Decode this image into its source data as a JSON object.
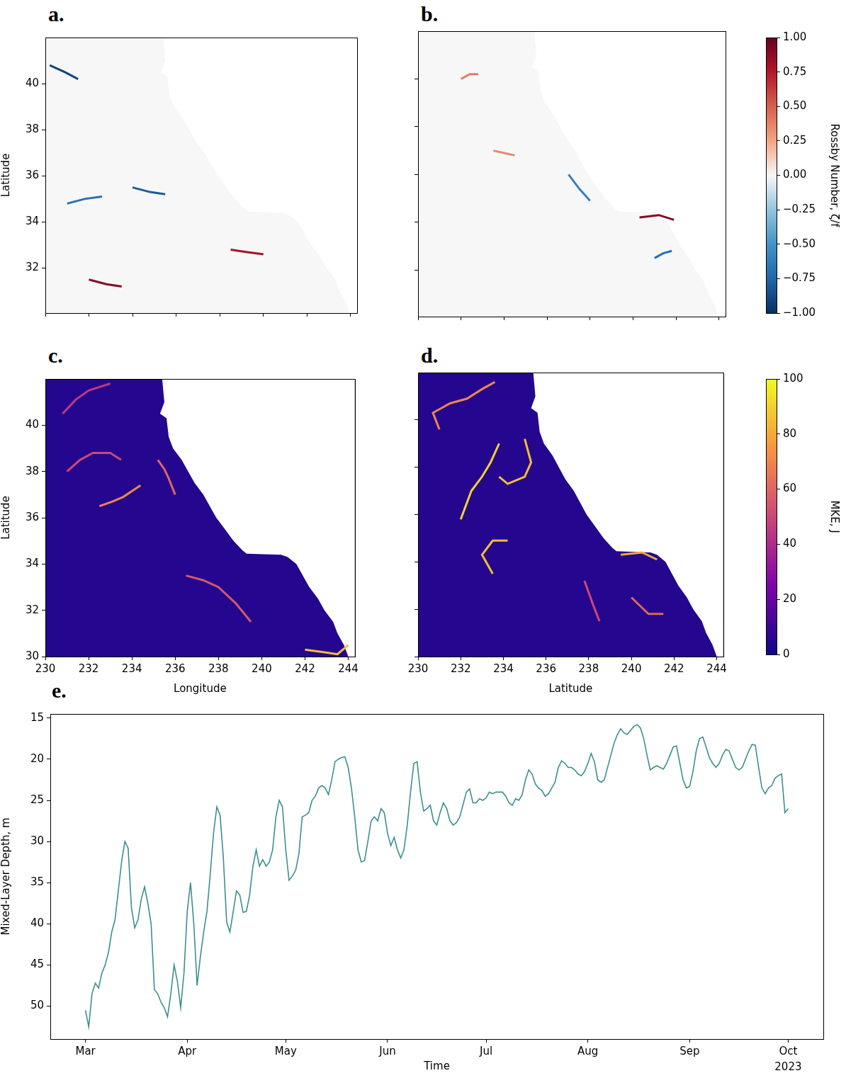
{
  "chart_data": [
    {
      "type": "map",
      "panel_label": "a.",
      "y_label": "Latitude",
      "tick_labels": "y",
      "grid": false,
      "xlim": [
        230,
        244.3
      ],
      "ylim": [
        30.05,
        42
      ],
      "xticks": [
        230,
        232,
        234,
        236,
        238,
        240,
        242,
        244
      ],
      "yticks": [
        32,
        34,
        36,
        38,
        40
      ],
      "background_value": 0,
      "coastline": {
        "lon": [
          235.4,
          235.5,
          235.3,
          235.6,
          235.7,
          235.9,
          236.3,
          236.6,
          236.9,
          237.3,
          237.6,
          237.9,
          238.3,
          238.7,
          239.1,
          239.3,
          240.9,
          241.2,
          241.6,
          241.9,
          242.2,
          242.6,
          242.9,
          243.3,
          243.5,
          243.8,
          244,
          244.3,
          244.3
        ],
        "lat": [
          42,
          41,
          40.5,
          40.3,
          39.5,
          39,
          38.5,
          38,
          37.5,
          37,
          36.5,
          36,
          35.5,
          35,
          34.6,
          34.45,
          34.4,
          34.3,
          34,
          33.5,
          33,
          32.5,
          32,
          31.5,
          31,
          30.5,
          30,
          30,
          42
        ]
      },
      "filaments": [
        {
          "lon": [
            230.2,
            230.9,
            231.5
          ],
          "lat": [
            40.8,
            40.5,
            40.2
          ],
          "value": -0.9
        },
        {
          "lon": [
            232,
            232.8,
            233.5
          ],
          "lat": [
            31.5,
            31.3,
            31.2
          ],
          "value": 0.9
        },
        {
          "lon": [
            238.5,
            239.2,
            240
          ],
          "lat": [
            32.8,
            32.7,
            32.6
          ],
          "value": 0.8
        },
        {
          "lon": [
            234,
            234.8,
            235.5
          ],
          "lat": [
            35.5,
            35.3,
            35.2
          ],
          "value": -0.8
        },
        {
          "lon": [
            231,
            231.8,
            232.6
          ],
          "lat": [
            34.8,
            35,
            35.1
          ],
          "value": -0.7
        }
      ]
    },
    {
      "type": "map",
      "panel_label": "b.",
      "tick_labels": false,
      "grid": false,
      "xlim": [
        230,
        244.3
      ],
      "ylim": [
        30.05,
        42
      ],
      "xticks": [
        230,
        232,
        234,
        236,
        238,
        240,
        242,
        244
      ],
      "yticks": [
        32,
        34,
        36,
        38,
        40
      ],
      "background_value": 0,
      "coastline": {
        "lon": [
          235.4,
          235.5,
          235.3,
          235.6,
          235.7,
          235.9,
          236.3,
          236.6,
          236.9,
          237.3,
          237.6,
          237.9,
          238.3,
          238.7,
          239.1,
          239.3,
          240.9,
          241.2,
          241.6,
          241.9,
          242.2,
          242.6,
          242.9,
          243.3,
          243.5,
          243.8,
          244,
          244.3,
          244.3
        ],
        "lat": [
          42,
          41,
          40.5,
          40.3,
          39.5,
          39,
          38.5,
          38,
          37.5,
          37,
          36.5,
          36,
          35.5,
          35,
          34.6,
          34.45,
          34.4,
          34.3,
          34,
          33.5,
          33,
          32.5,
          32,
          31.5,
          31,
          30.5,
          30,
          30,
          42
        ]
      },
      "filaments": [
        {
          "lon": [
            240.3,
            241.2,
            241.9
          ],
          "lat": [
            34.2,
            34.3,
            34.1
          ],
          "value": 0.9
        },
        {
          "lon": [
            232,
            232.4,
            232.8
          ],
          "lat": [
            40,
            40.2,
            40.2
          ],
          "value": 0.4
        },
        {
          "lon": [
            237,
            237.5,
            238
          ],
          "lat": [
            36,
            35.4,
            34.9
          ],
          "value": -0.6
        },
        {
          "lon": [
            233.5,
            234,
            234.5
          ],
          "lat": [
            37,
            36.9,
            36.8
          ],
          "value": 0.35
        },
        {
          "lon": [
            241,
            241.4,
            241.8
          ],
          "lat": [
            32.5,
            32.7,
            32.8
          ],
          "value": -0.7
        }
      ]
    },
    {
      "type": "colorbar",
      "title": "Rossby Number, ζ/f",
      "ylim": [
        -1,
        1
      ],
      "yticks": [
        {
          "value": -1,
          "label": "−1.00"
        },
        {
          "value": -0.75,
          "label": "−0.75"
        },
        {
          "value": -0.5,
          "label": "−0.50"
        },
        {
          "value": -0.25,
          "label": "−0.25"
        },
        {
          "value": 0,
          "label": "0.00"
        },
        {
          "value": 0.25,
          "label": "0.25"
        },
        {
          "value": 0.5,
          "label": "0.50"
        },
        {
          "value": 0.75,
          "label": "0.75"
        },
        {
          "value": 1,
          "label": "1.00"
        }
      ],
      "colors": [
        "#053061",
        "#2166ac",
        "#4393c3",
        "#92c5de",
        "#f7f7f7",
        "#f4a582",
        "#d6604d",
        "#b2182b",
        "#67001f"
      ]
    },
    {
      "type": "map",
      "panel_label": "c.",
      "x_label": "Longitude",
      "y_label": "Latitude",
      "grid": false,
      "xlim": [
        230,
        244.3
      ],
      "ylim": [
        30,
        42
      ],
      "xticks": [
        230,
        232,
        234,
        236,
        238,
        240,
        242,
        244
      ],
      "yticks": [
        30,
        32,
        34,
        36,
        38,
        40
      ],
      "background_value": 5,
      "coastline": {
        "lon": [
          235.4,
          235.5,
          235.3,
          235.6,
          235.7,
          235.9,
          236.3,
          236.6,
          236.9,
          237.3,
          237.6,
          237.9,
          238.3,
          238.7,
          239.1,
          239.3,
          240.9,
          241.2,
          241.6,
          241.9,
          242.2,
          242.6,
          242.9,
          243.3,
          243.5,
          243.8,
          244,
          244.3,
          244.3
        ],
        "lat": [
          42,
          41,
          40.5,
          40.3,
          39.5,
          39,
          38.5,
          38,
          37.5,
          37,
          36.5,
          36,
          35.5,
          35,
          34.6,
          34.45,
          34.4,
          34.3,
          34,
          33.5,
          33,
          32.5,
          32,
          31.5,
          31,
          30.5,
          30,
          30,
          42
        ]
      },
      "filaments": [
        {
          "lon": [
            231,
            231.6,
            232.2,
            233,
            233.5
          ],
          "lat": [
            38,
            38.5,
            38.8,
            38.8,
            38.5
          ],
          "value": 50
        },
        {
          "lon": [
            232.5,
            233.1,
            233.6,
            234.4
          ],
          "lat": [
            36.5,
            36.7,
            36.9,
            37.4
          ],
          "value": 70
        },
        {
          "lon": [
            235.2,
            235.5,
            235.7,
            236
          ],
          "lat": [
            38.5,
            38.1,
            37.7,
            37
          ],
          "value": 60
        },
        {
          "lon": [
            236.5,
            237.3,
            238,
            238.8,
            239.5
          ],
          "lat": [
            33.5,
            33.3,
            33,
            32.3,
            31.5
          ],
          "value": 55
        },
        {
          "lon": [
            242,
            242.8,
            243.5,
            244
          ],
          "lat": [
            30.3,
            30.2,
            30.1,
            30.5
          ],
          "value": 85
        },
        {
          "lon": [
            230.8,
            231.4,
            232,
            233
          ],
          "lat": [
            40.5,
            41.1,
            41.5,
            41.8
          ],
          "value": 45
        }
      ]
    },
    {
      "type": "map",
      "panel_label": "d.",
      "x_label": "Latitude",
      "tick_labels": "x",
      "grid": false,
      "xlim": [
        230,
        244.3
      ],
      "ylim": [
        30,
        42
      ],
      "xticks": [
        230,
        232,
        234,
        236,
        238,
        240,
        242,
        244
      ],
      "yticks": [
        30,
        32,
        34,
        36,
        38,
        40
      ],
      "background_value": 5,
      "coastline": {
        "lon": [
          235.4,
          235.5,
          235.3,
          235.6,
          235.7,
          235.9,
          236.3,
          236.6,
          236.9,
          237.3,
          237.6,
          237.9,
          238.3,
          238.7,
          239.1,
          239.3,
          240.9,
          241.2,
          241.6,
          241.9,
          242.2,
          242.6,
          242.9,
          243.3,
          243.5,
          243.8,
          244,
          244.3,
          244.3
        ],
        "lat": [
          42,
          41,
          40.5,
          40.3,
          39.5,
          39,
          38.5,
          38,
          37.5,
          37,
          36.5,
          36,
          35.5,
          35,
          34.6,
          34.45,
          34.4,
          34.3,
          34,
          33.5,
          33,
          32.5,
          32,
          31.5,
          31,
          30.5,
          30,
          30,
          42
        ]
      },
      "filaments": [
        {
          "lon": [
            231,
            230.7,
            231.5,
            232.3,
            233,
            233.6
          ],
          "lat": [
            39.6,
            40.3,
            40.7,
            40.9,
            41.3,
            41.6
          ],
          "value": 70
        },
        {
          "lon": [
            232,
            232.5,
            233,
            233.4,
            233.8
          ],
          "lat": [
            35.8,
            37,
            37.6,
            38.2,
            39
          ],
          "value": 90
        },
        {
          "lon": [
            235,
            235.3,
            235,
            234.2,
            233.8
          ],
          "lat": [
            39.2,
            38.2,
            37.6,
            37.3,
            37.6
          ],
          "value": 85
        },
        {
          "lon": [
            233.5,
            233,
            233.5,
            234.2
          ],
          "lat": [
            33.5,
            34.3,
            34.9,
            34.9
          ],
          "value": 85
        },
        {
          "lon": [
            239.5,
            240.5,
            241.2
          ],
          "lat": [
            34.3,
            34.4,
            34.1
          ],
          "value": 80
        },
        {
          "lon": [
            237.8,
            238.2,
            238.5
          ],
          "lat": [
            33.2,
            32.2,
            31.5
          ],
          "value": 50
        },
        {
          "lon": [
            240,
            240.8,
            241.5
          ],
          "lat": [
            32.5,
            31.8,
            31.8
          ],
          "value": 60
        }
      ]
    },
    {
      "type": "colorbar",
      "title": "MKE, J",
      "ylim": [
        0,
        100
      ],
      "yticks": [
        0,
        20,
        40,
        60,
        80,
        100
      ],
      "colors": [
        "#0d0887",
        "#7e03a8",
        "#cc4778",
        "#f89540",
        "#f0f921"
      ]
    },
    {
      "type": "line",
      "panel_label": "e.",
      "x_label": "Time",
      "y_label": "Mixed-Layer Depth, m",
      "annotation": "2023",
      "grid": false,
      "color": "#3d8f8f",
      "ylim": [
        54,
        14.5
      ],
      "yticks": [
        15,
        20,
        25,
        30,
        35,
        40,
        45,
        50
      ],
      "categories": [
        "Mar",
        null,
        null,
        null,
        null,
        null,
        null,
        null,
        null,
        null,
        null,
        null,
        null,
        null,
        null,
        null,
        null,
        null,
        null,
        null,
        null,
        null,
        null,
        null,
        null,
        null,
        null,
        null,
        null,
        null,
        null,
        "Apr",
        null,
        null,
        null,
        null,
        null,
        null,
        null,
        null,
        null,
        null,
        null,
        null,
        null,
        null,
        null,
        null,
        null,
        null,
        null,
        null,
        null,
        null,
        null,
        null,
        null,
        null,
        null,
        null,
        null,
        "May",
        null,
        null,
        null,
        null,
        null,
        null,
        null,
        null,
        null,
        null,
        null,
        null,
        null,
        null,
        null,
        null,
        null,
        null,
        null,
        null,
        null,
        null,
        null,
        null,
        null,
        null,
        null,
        null,
        null,
        null,
        "Jun",
        null,
        null,
        null,
        null,
        null,
        null,
        null,
        null,
        null,
        null,
        null,
        null,
        null,
        null,
        null,
        null,
        null,
        null,
        null,
        null,
        null,
        null,
        null,
        null,
        null,
        null,
        null,
        null,
        null,
        "Jul",
        null,
        null,
        null,
        null,
        null,
        null,
        null,
        null,
        null,
        null,
        null,
        null,
        null,
        null,
        null,
        null,
        null,
        null,
        null,
        null,
        null,
        null,
        null,
        null,
        null,
        null,
        null,
        null,
        null,
        null,
        "Aug",
        null,
        null,
        null,
        null,
        null,
        null,
        null,
        null,
        null,
        null,
        null,
        null,
        null,
        null,
        null,
        null,
        null,
        null,
        null,
        null,
        null,
        null,
        null,
        null,
        null,
        null,
        null,
        null,
        null,
        null,
        "Sep",
        null,
        null,
        null,
        null,
        null,
        null,
        null,
        null,
        null,
        null,
        null,
        null,
        null,
        null,
        null,
        null,
        null,
        null,
        null,
        null,
        null,
        null,
        null,
        null,
        null,
        null,
        null,
        null,
        null,
        "Oct"
      ],
      "values": [
        50.5,
        52.5,
        48.5,
        47.2,
        47.8,
        46,
        45,
        43.5,
        41,
        39.5,
        36,
        32.5,
        30,
        30.8,
        38,
        40.5,
        39.5,
        37,
        35.5,
        37.5,
        40,
        48,
        48.5,
        49.5,
        50.2,
        51.3,
        48.5,
        45,
        47,
        50.2,
        46,
        38.5,
        35,
        40,
        47.5,
        44,
        41,
        38.5,
        34,
        29,
        25.8,
        26.8,
        32,
        39.8,
        41,
        38.5,
        36,
        36.5,
        38.6,
        38.5,
        36.5,
        33,
        31,
        33,
        32.2,
        33,
        32.5,
        31,
        27,
        25,
        25.8,
        31,
        34.7,
        34.2,
        33.5,
        31.5,
        27,
        26.8,
        26.5,
        25,
        24.5,
        23.5,
        23.2,
        23.5,
        24.3,
        22.5,
        20.3,
        20,
        19.8,
        19.7,
        21,
        23.5,
        27,
        31,
        32.5,
        32.3,
        30,
        27.5,
        27,
        27.5,
        26,
        26.5,
        29,
        30.5,
        29.5,
        31,
        32,
        31,
        28,
        24,
        20.5,
        20.3,
        24,
        26.3,
        26,
        25.6,
        27.5,
        28,
        26.5,
        25.3,
        26,
        27.5,
        28,
        27.7,
        27,
        25.5,
        24,
        23.6,
        25.3,
        25.3,
        24.8,
        25,
        24.7,
        24,
        24.2,
        24,
        24,
        24,
        24.5,
        25.3,
        25.6,
        24.8,
        25,
        24.3,
        22.5,
        21.3,
        21.8,
        23,
        23.5,
        23.8,
        24.5,
        24.2,
        23.5,
        22.8,
        21,
        20.2,
        20.5,
        21,
        21,
        21.3,
        21.8,
        22,
        21.5,
        20.5,
        19.3,
        20.3,
        22.5,
        22.8,
        22.5,
        21,
        19.5,
        18,
        17,
        16.3,
        16.8,
        17,
        16.5,
        16,
        15.8,
        16.2,
        17.5,
        19.5,
        21.3,
        21,
        20.8,
        21,
        21.2,
        20.5,
        19.5,
        18.5,
        18.4,
        20.5,
        22.5,
        23.5,
        23.3,
        21.5,
        19,
        17.5,
        17.3,
        18.5,
        19.8,
        20.5,
        21,
        20.5,
        19.5,
        18.8,
        19,
        20,
        21,
        21.3,
        21,
        20,
        19,
        18.2,
        18.3,
        21,
        23.5,
        24.2,
        23.5,
        23.2,
        22.3,
        22,
        21.8,
        26.5,
        26
      ]
    }
  ]
}
